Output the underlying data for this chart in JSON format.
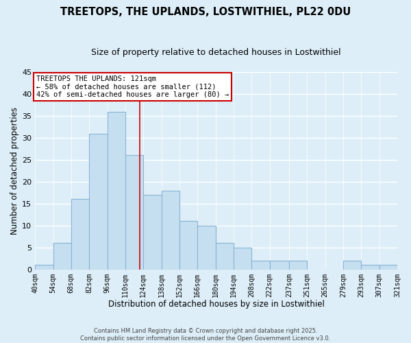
{
  "title": "TREETOPS, THE UPLANDS, LOSTWITHIEL, PL22 0DU",
  "subtitle": "Size of property relative to detached houses in Lostwithiel",
  "xlabel": "Distribution of detached houses by size in Lostwithiel",
  "ylabel": "Number of detached properties",
  "bin_edges": [
    40,
    54,
    68,
    82,
    96,
    110,
    124,
    138,
    152,
    166,
    180,
    194,
    208,
    222,
    237,
    251,
    265,
    279,
    293,
    307,
    321
  ],
  "counts": [
    1,
    6,
    16,
    31,
    36,
    26,
    17,
    18,
    11,
    10,
    6,
    5,
    2,
    2,
    2,
    0,
    0,
    2,
    1,
    1
  ],
  "bar_color": "#c5dff0",
  "bar_edge_color": "#8ab4d4",
  "vline_x": 121,
  "vline_color": "#cc0000",
  "ylim": [
    0,
    45
  ],
  "yticks": [
    0,
    5,
    10,
    15,
    20,
    25,
    30,
    35,
    40,
    45
  ],
  "annotation_title": "TREETOPS THE UPLANDS: 121sqm",
  "annotation_line1": "← 58% of detached houses are smaller (112)",
  "annotation_line2": "42% of semi-detached houses are larger (80) →",
  "annotation_box_color": "#ffffff",
  "annotation_box_edge": "#cc0000",
  "background_color": "#ddeef8",
  "grid_color": "#ffffff",
  "footer_line1": "Contains HM Land Registry data © Crown copyright and database right 2025.",
  "footer_line2": "Contains public sector information licensed under the Open Government Licence v3.0.",
  "tick_labels": [
    "40sqm",
    "54sqm",
    "68sqm",
    "82sqm",
    "96sqm",
    "110sqm",
    "124sqm",
    "138sqm",
    "152sqm",
    "166sqm",
    "180sqm",
    "194sqm",
    "208sqm",
    "222sqm",
    "237sqm",
    "251sqm",
    "265sqm",
    "279sqm",
    "293sqm",
    "307sqm",
    "321sqm"
  ]
}
